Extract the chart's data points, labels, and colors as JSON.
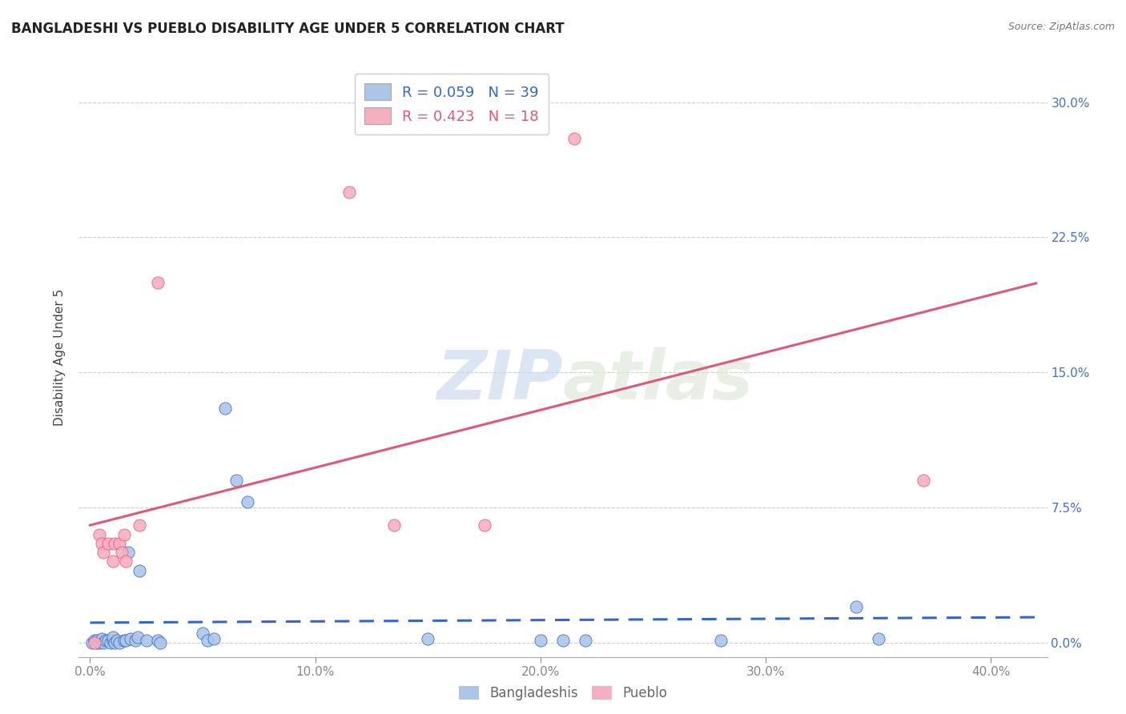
{
  "title": "BANGLADESHI VS PUEBLO DISABILITY AGE UNDER 5 CORRELATION CHART",
  "source": "Source: ZipAtlas.com",
  "ylabel": "Disability Age Under 5",
  "xlabel_ticks": [
    "0.0%",
    "10.0%",
    "20.0%",
    "30.0%",
    "40.0%"
  ],
  "xlabel_vals": [
    0.0,
    0.1,
    0.2,
    0.3,
    0.4
  ],
  "ylabel_ticks": [
    "0.0%",
    "7.5%",
    "15.0%",
    "22.5%",
    "30.0%"
  ],
  "ylabel_vals": [
    0.0,
    0.075,
    0.15,
    0.225,
    0.3
  ],
  "xlim": [
    -0.005,
    0.425
  ],
  "ylim": [
    -0.008,
    0.325
  ],
  "bangladeshi_R": 0.059,
  "bangladeshi_N": 39,
  "pueblo_R": 0.423,
  "pueblo_N": 18,
  "bangladeshi_color": "#adc6e8",
  "pueblo_color": "#f5afc0",
  "bangladeshi_line_color": "#3366cc",
  "pueblo_line_color": "#e05878",
  "bangladeshi_x": [
    0.001,
    0.002,
    0.003,
    0.003,
    0.004,
    0.005,
    0.005,
    0.006,
    0.007,
    0.008,
    0.009,
    0.01,
    0.01,
    0.011,
    0.012,
    0.013,
    0.015,
    0.016,
    0.017,
    0.018,
    0.02,
    0.021,
    0.022,
    0.025,
    0.03,
    0.031,
    0.05,
    0.052,
    0.055,
    0.06,
    0.065,
    0.07,
    0.15,
    0.2,
    0.21,
    0.22,
    0.28,
    0.34,
    0.35
  ],
  "bangladeshi_y": [
    0.0,
    0.001,
    0.0,
    0.001,
    0.0,
    0.001,
    0.002,
    0.0,
    0.001,
    0.001,
    0.0,
    0.001,
    0.003,
    0.0,
    0.001,
    0.0,
    0.001,
    0.001,
    0.05,
    0.002,
    0.001,
    0.003,
    0.04,
    0.001,
    0.001,
    0.0,
    0.005,
    0.001,
    0.002,
    0.13,
    0.09,
    0.078,
    0.002,
    0.001,
    0.001,
    0.001,
    0.001,
    0.02,
    0.002
  ],
  "pueblo_x": [
    0.002,
    0.004,
    0.005,
    0.006,
    0.008,
    0.01,
    0.011,
    0.013,
    0.014,
    0.015,
    0.016,
    0.022,
    0.03,
    0.115,
    0.135,
    0.175,
    0.215,
    0.37
  ],
  "pueblo_y": [
    0.0,
    0.06,
    0.055,
    0.05,
    0.055,
    0.045,
    0.055,
    0.055,
    0.05,
    0.06,
    0.045,
    0.065,
    0.2,
    0.25,
    0.065,
    0.065,
    0.28,
    0.09
  ],
  "watermark_zip": "ZIP",
  "watermark_atlas": "atlas",
  "legend_entries": [
    "Bangladeshis",
    "Pueblo"
  ],
  "grid_color": "#cccccc",
  "grid_linestyle": "--"
}
